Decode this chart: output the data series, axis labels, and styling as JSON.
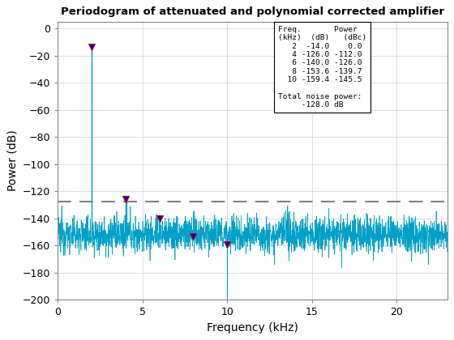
{
  "title": "Periodogram of attenuated and polynomial corrected amplifier",
  "xlabel": "Frequency (kHz)",
  "ylabel": "Power (dB)",
  "xlim": [
    0,
    23
  ],
  "ylim": [
    -200,
    5
  ],
  "yticks": [
    0,
    -20,
    -40,
    -60,
    -80,
    -100,
    -120,
    -140,
    -160,
    -180,
    -200
  ],
  "xticks": [
    0,
    5,
    10,
    15,
    20
  ],
  "noise_floor_y": -128.0,
  "harmonics": [
    {
      "freq": 2,
      "power": -14.0,
      "dBc": 0.0
    },
    {
      "freq": 4,
      "power": -126.0,
      "dBc": -112.0
    },
    {
      "freq": 6,
      "power": -140.0,
      "dBc": -126.0
    },
    {
      "freq": 8,
      "power": -153.6,
      "dBc": -139.7
    },
    {
      "freq": 10,
      "power": -159.4,
      "dBc": -145.5
    }
  ],
  "noise_mean": -152.0,
  "noise_std": 6.5,
  "line_color": "#00a0c8",
  "marker_fill_color": "#0000cc",
  "marker_edge_color": "#cc0000",
  "noise_line_color": "#808080",
  "background_color": "#ffffff",
  "random_seed": 12345,
  "n_points": 2200
}
